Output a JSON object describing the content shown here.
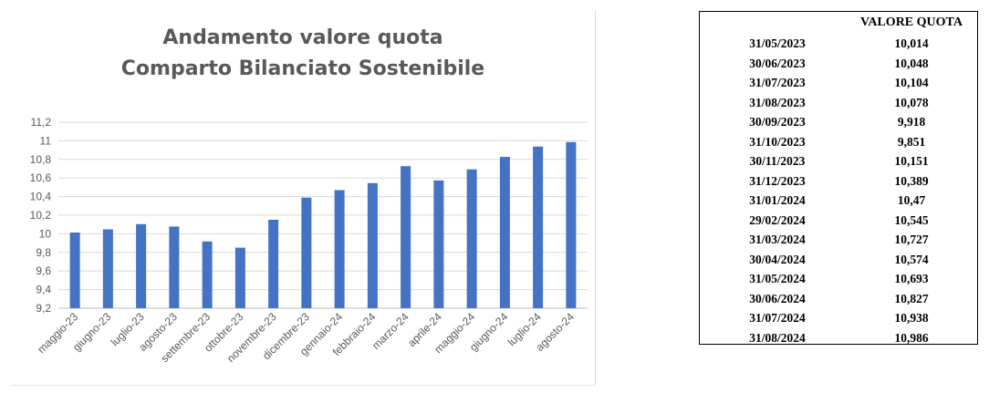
{
  "chart_data": {
    "type": "bar",
    "title": "Andamento valore quota",
    "subtitle": "Comparto Bilanciato Sostenibile",
    "categories": [
      "maggio-23",
      "giugno-23",
      "luglio-23",
      "agosto-23",
      "settembre-23",
      "ottobre-23",
      "novembre-23",
      "dicembre-23",
      "gennaio-24",
      "febbraio-24",
      "marzo-24",
      "aprile-24",
      "maggio-24",
      "giugno-24",
      "luglio-24",
      "agosto-24"
    ],
    "values": [
      10.014,
      10.048,
      10.104,
      10.078,
      9.918,
      9.851,
      10.151,
      10.389,
      10.47,
      10.545,
      10.727,
      10.574,
      10.693,
      10.827,
      10.938,
      10.986
    ],
    "ylim": [
      9.2,
      11.2
    ],
    "yticks": [
      "9,2",
      "9,4",
      "9,6",
      "9,8",
      "10",
      "10,2",
      "10,4",
      "10,6",
      "10,8",
      "11",
      "11,2"
    ],
    "grid": true,
    "bar_color": "#4472c4"
  },
  "table": {
    "header": "VALORE QUOTA",
    "rows": [
      {
        "date": "31/05/2023",
        "value": "10,014"
      },
      {
        "date": "30/06/2023",
        "value": "10,048"
      },
      {
        "date": "31/07/2023",
        "value": "10,104"
      },
      {
        "date": "31/08/2023",
        "value": "10,078"
      },
      {
        "date": "30/09/2023",
        "value": "9,918"
      },
      {
        "date": "31/10/2023",
        "value": "9,851"
      },
      {
        "date": "30/11/2023",
        "value": "10,151"
      },
      {
        "date": "31/12/2023",
        "value": "10,389"
      },
      {
        "date": "31/01/2024",
        "value": "10,47"
      },
      {
        "date": "29/02/2024",
        "value": "10,545"
      },
      {
        "date": "31/03/2024",
        "value": "10,727"
      },
      {
        "date": "30/04/2024",
        "value": "10,574"
      },
      {
        "date": "31/05/2024",
        "value": "10,693"
      },
      {
        "date": "30/06/2024",
        "value": "10,827"
      },
      {
        "date": "31/07/2024",
        "value": "10,938"
      },
      {
        "date": "31/08/2024",
        "value": "10,986"
      }
    ]
  }
}
